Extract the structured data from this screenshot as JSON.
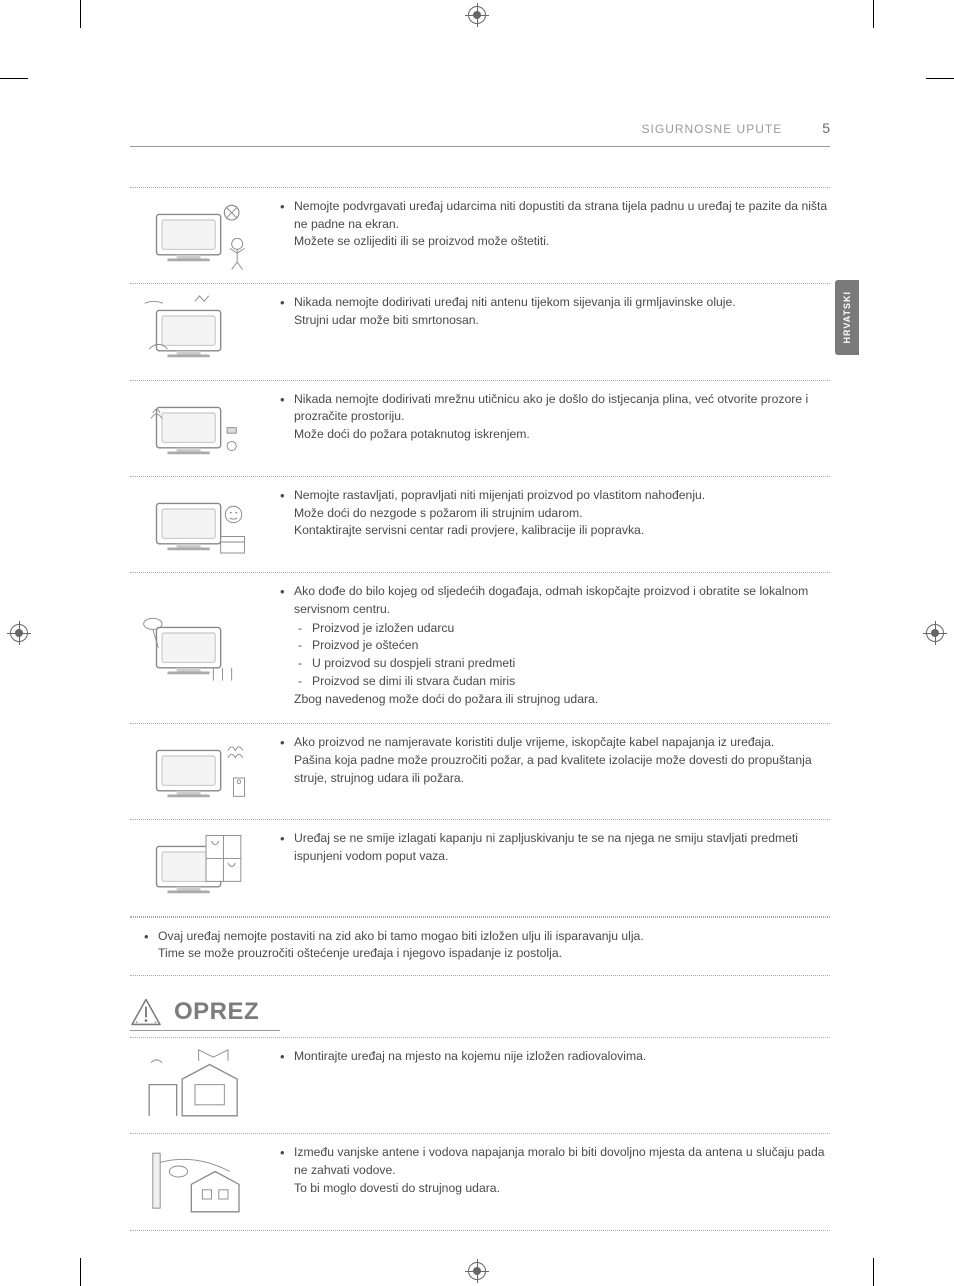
{
  "header": {
    "section_title": "SIGURNOSNE UPUTE",
    "page_number": "5"
  },
  "lang_tab": "HRVATSKI",
  "warnings": [
    {
      "lines": [
        "Nemojte podvrgavati uređaj udarcima niti dopustiti da strana tijela padnu u uređaj te pazite da ništa ne padne na ekran.",
        "Možete se ozlijediti ili se proizvod može oštetiti."
      ]
    },
    {
      "lines": [
        "Nikada nemojte dodirivati uređaj niti antenu tijekom sijevanja ili grmljavinske oluje.",
        "Strujni udar može biti smrtonosan."
      ]
    },
    {
      "lines": [
        "Nikada nemojte dodirivati mrežnu utičnicu ako je došlo do istjecanja plina, već otvorite prozore i prozračite prostoriju.",
        "Može doći do požara potaknutog iskrenjem."
      ]
    },
    {
      "lines": [
        "Nemojte rastavljati, popravljati niti mijenjati proizvod po vlastitom nahođenju.",
        "Može doći do nezgode s požarom ili strujnim udarom.",
        "Kontaktirajte servisni centar radi provjere, kalibracije ili popravka."
      ]
    },
    {
      "intro": "Ako dođe do bilo kojeg od sljedećih događaja, odmah iskopčajte proizvod i obratite se lokalnom servisnom centru.",
      "dashes": [
        "Proizvod je izložen udarcu",
        "Proizvod je oštećen",
        "U proizvod su dospjeli strani predmeti",
        "Proizvod se dimi ili stvara čudan miris"
      ],
      "outro": "Zbog navedenog može doći do požara ili strujnog udara."
    },
    {
      "lines": [
        "Ako proizvod ne namjeravate koristiti dulje vrijeme, iskopčajte kabel napajanja iz uređaja.",
        "Pašina koja padne može prouzročiti požar, a pad kvalitete izolacije može dovesti do propuštanja struje, strujnog udara ili požara."
      ]
    },
    {
      "lines": [
        "Uređaj se ne smije izlagati kapanju ni zapljuskivanju te se na njega ne smiju stavljati predmeti ispunjeni vodom poput vaza."
      ]
    }
  ],
  "full_row": {
    "text": "Ovaj uređaj nemojte postaviti na zid ako bi tamo mogao biti izložen ulju ili isparavanju ulja.",
    "sub": "Time se može prouzročiti oštećenje uređaja i njegovo ispadanje iz postolja."
  },
  "caution_label": "OPREZ",
  "cautions": [
    {
      "lines": [
        "Montirajte uređaj na mjesto na kojemu nije izložen radiovalovima."
      ]
    },
    {
      "lines": [
        "Između vanjske antene i vodova napajanja moralo bi biti dovoljno mjesta da antena u slučaju pada ne zahvati vodove.",
        "To bi moglo dovesti do strujnog udara."
      ]
    }
  ],
  "colors": {
    "text": "#4a4a4a",
    "muted": "#9a9a9a",
    "rule": "#999999",
    "dotted": "#aaaaaa",
    "tab_bg": "#7a7a7a",
    "heading": "#7c7c7c"
  }
}
